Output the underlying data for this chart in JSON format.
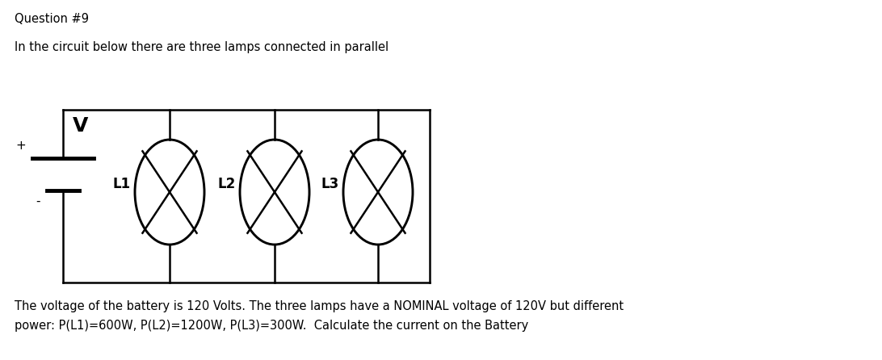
{
  "title": "Question #9",
  "subtitle": "In the circuit below there are three lamps connected in parallel",
  "footer_line1": "The voltage of the battery is 120 Volts. The three lamps have a NOMINAL voltage of 120V but different",
  "footer_line2": "power: P(L1)=600W, P(L2)=1200W, P(L3)=300W.  Calculate the current on the Battery",
  "background_color": "#ffffff",
  "text_color": "#000000",
  "circuit_color": "#000000",
  "lamp_labels": [
    "L1",
    "L2",
    "L3"
  ],
  "battery_label": "V",
  "plus_label": "+",
  "minus_label": "-",
  "title_fontsize": 10.5,
  "body_fontsize": 10.5,
  "footer_fontsize": 10.5,
  "lamp_label_fontsize": 12,
  "battery_V_fontsize": 18,
  "plus_minus_fontsize": 11
}
